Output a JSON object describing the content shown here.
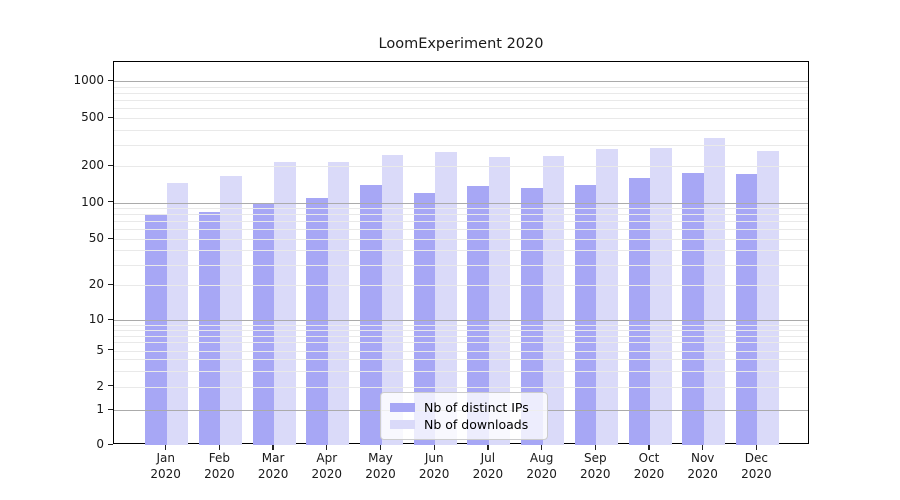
{
  "title": "LoomExperiment 2020",
  "chart_data": {
    "type": "bar",
    "title": "LoomExperiment 2020",
    "xlabel": "",
    "ylabel": "",
    "year_label": "2020",
    "categories": [
      "Jan",
      "Feb",
      "Mar",
      "Apr",
      "May",
      "Jun",
      "Jul",
      "Aug",
      "Sep",
      "Oct",
      "Nov",
      "Dec"
    ],
    "series": [
      {
        "name": "Nb of distinct IPs",
        "color": "#a7a7f5",
        "values": [
          79,
          83,
          100,
          109,
          140,
          120,
          138,
          132,
          139,
          158,
          176,
          172
        ]
      },
      {
        "name": "Nb of downloads",
        "color": "#dadaf9",
        "values": [
          144,
          165,
          215,
          215,
          247,
          262,
          239,
          241,
          276,
          284,
          340,
          264
        ]
      }
    ],
    "y_ticks": [
      0,
      1,
      2,
      5,
      10,
      20,
      50,
      100,
      200,
      500,
      1000
    ],
    "y_scale": "log above 1, linear segment 0-1 (symlog-like)",
    "ylim": [
      0,
      1460
    ],
    "grid": "major gridlines on decades (1,10,100,1000) dark, minor log gridlines light, grid drawn over bars",
    "legend_position": "inside plot, lower center-right"
  },
  "colors": {
    "background": "#ffffff",
    "bar_distinct_ips": "#a7a7f5",
    "bar_downloads": "#dadaf9",
    "grid_major": "#ababab",
    "grid_minor": "#e9e9e9",
    "axis": "#000000",
    "text": "#1a1a1a",
    "legend_border": "#cccccc"
  }
}
